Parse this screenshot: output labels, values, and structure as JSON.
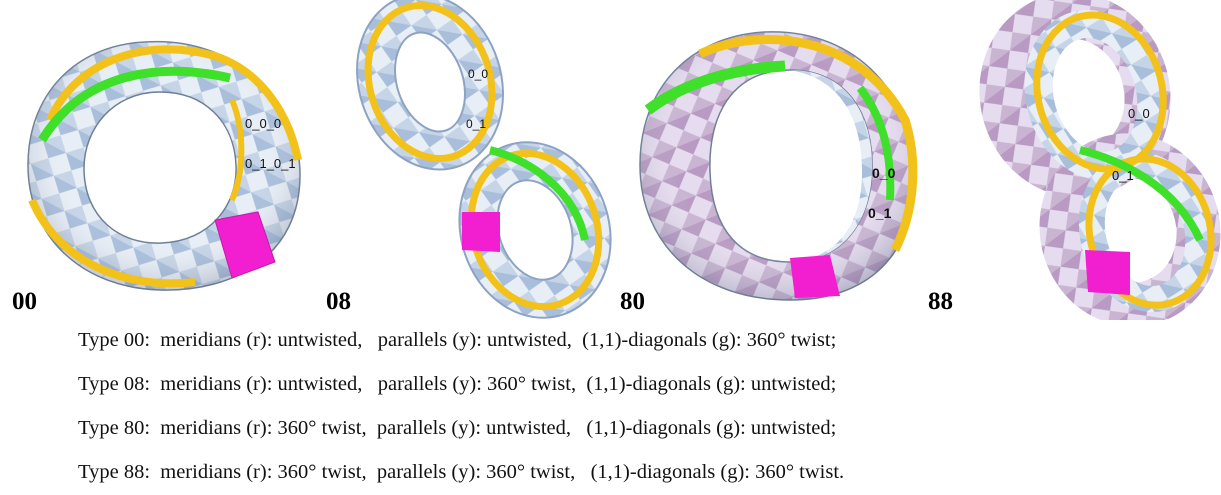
{
  "figure": {
    "panels": [
      {
        "label": "00",
        "surface_labels": [
          "0_0_0",
          "0_1_0_1"
        ]
      },
      {
        "label": "08",
        "surface_labels": [
          "0_0",
          "0_1"
        ]
      },
      {
        "label": "80",
        "surface_labels": [
          "0_0",
          "0_1"
        ]
      },
      {
        "label": "88",
        "surface_labels": [
          "0_0",
          "0_1"
        ]
      }
    ],
    "colors": {
      "checker_light": "#e8eef6",
      "checker_dark": "#a8bedb",
      "checker_purple": "#b89ac2",
      "parallel_yellow": "#f2c21a",
      "diagonal_green": "#3ee02a",
      "meridian_magenta": "#f21fd0",
      "meridian_red": "#e03030"
    }
  },
  "captions": [
    {
      "type": "Type 00:",
      "meridians": "meridians (r): untwisted,",
      "parallels": "parallels (y): untwisted,",
      "diagonals": "(1,1)-diagonals (g): 360° twist;"
    },
    {
      "type": "Type 08:",
      "meridians": "meridians (r): untwisted,",
      "parallels": "parallels (y): 360° twist,",
      "diagonals": "(1,1)-diagonals (g): untwisted;"
    },
    {
      "type": "Type 80:",
      "meridians": "meridians (r): 360° twist,",
      "parallels": "parallels (y): untwisted,",
      "diagonals": "(1,1)-diagonals (g): untwisted;"
    },
    {
      "type": "Type 88:",
      "meridians": "meridians (r): 360° twist,",
      "parallels": "parallels (y): 360° twist,",
      "diagonals": "(1,1)-diagonals (g): 360° twist."
    }
  ]
}
